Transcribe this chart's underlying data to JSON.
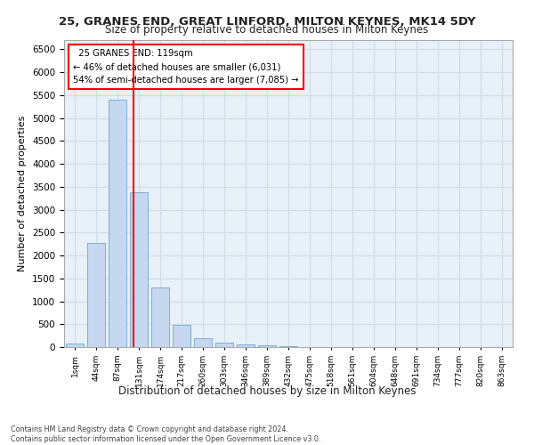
{
  "title": "25, GRANES END, GREAT LINFORD, MILTON KEYNES, MK14 5DY",
  "subtitle": "Size of property relative to detached houses in Milton Keynes",
  "xlabel": "Distribution of detached houses by size in Milton Keynes",
  "ylabel": "Number of detached properties",
  "footer_line1": "Contains HM Land Registry data © Crown copyright and database right 2024.",
  "footer_line2": "Contains public sector information licensed under the Open Government Licence v3.0.",
  "categories": [
    "1sqm",
    "44sqm",
    "87sqm",
    "131sqm",
    "174sqm",
    "217sqm",
    "260sqm",
    "303sqm",
    "346sqm",
    "389sqm",
    "432sqm",
    "475sqm",
    "518sqm",
    "561sqm",
    "604sqm",
    "648sqm",
    "691sqm",
    "734sqm",
    "777sqm",
    "820sqm",
    "863sqm"
  ],
  "values": [
    70,
    2280,
    5400,
    3380,
    1300,
    480,
    185,
    90,
    55,
    40,
    10,
    5,
    5,
    0,
    0,
    0,
    0,
    0,
    0,
    0,
    0
  ],
  "bar_color": "#c5d8f0",
  "bar_edge_color": "#7bafd4",
  "ylim": [
    0,
    6700
  ],
  "yticks": [
    0,
    500,
    1000,
    1500,
    2000,
    2500,
    3000,
    3500,
    4000,
    4500,
    5000,
    5500,
    6000,
    6500
  ],
  "property_label": "25 GRANES END: 119sqm",
  "annotation_line1": "← 46% of detached houses are smaller (6,031)",
  "annotation_line2": "54% of semi-detached houses are larger (7,085) →",
  "red_line_x": 2.74,
  "background_color": "#ffffff",
  "grid_color": "#d0dce8",
  "plot_bg_color": "#e8f0f8"
}
